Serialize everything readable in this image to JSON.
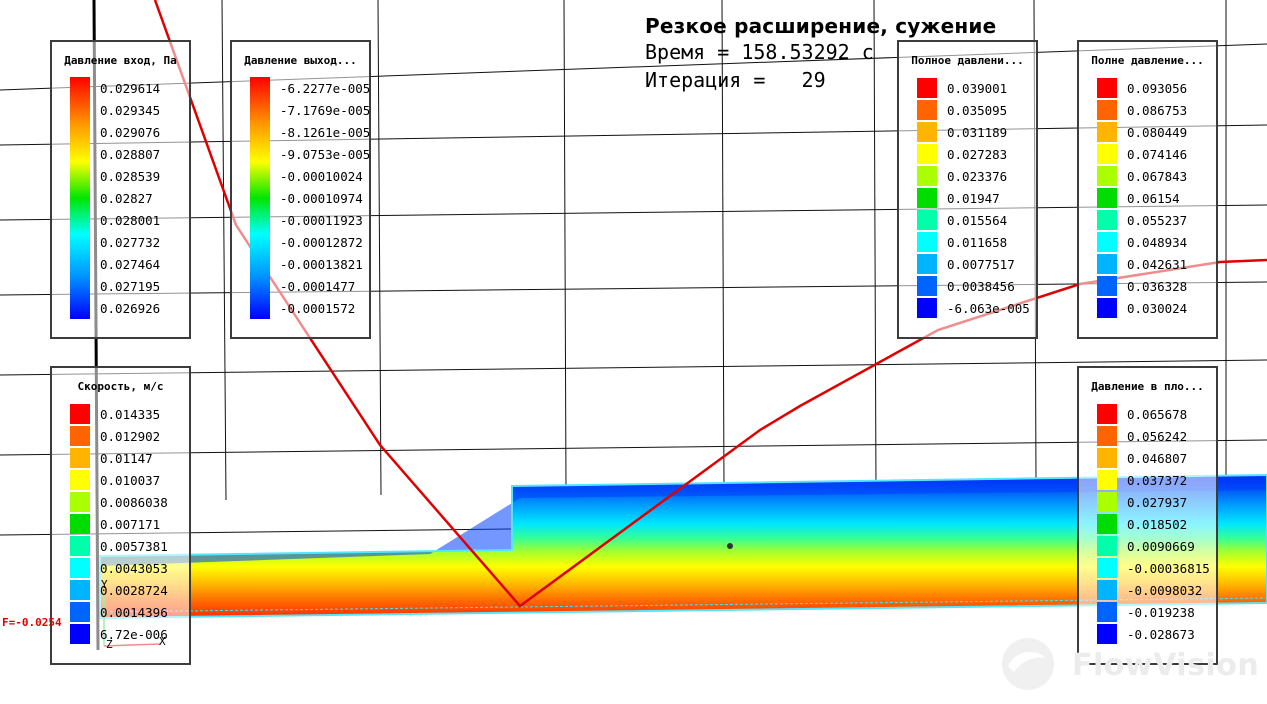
{
  "header": {
    "title": "Резкое расширение, сужение",
    "time_line": "Время = 158.53292 с",
    "iter_line": "Итерация =   29"
  },
  "force_label": "F=-0.0254",
  "axes_labels": {
    "y": "Y",
    "z": "Z",
    "x": "X"
  },
  "watermark": "FlowVision",
  "legends": {
    "inlet_pressure": {
      "title": "Давление вход, Па",
      "values": [
        "0.029614",
        "0.029345",
        "0.029076",
        "0.028807",
        "0.028539",
        "0.02827",
        "0.028001",
        "0.027732",
        "0.027464",
        "0.027195",
        "0.026926"
      ]
    },
    "outlet_pressure": {
      "title": "Давление выход...",
      "values": [
        "-6.2277e-005",
        "-7.1769e-005",
        "-8.1261e-005",
        "-9.0753e-005",
        "-0.00010024",
        "-0.00010974",
        "-0.00011923",
        "-0.00012872",
        "-0.00013821",
        "-0.0001477",
        "-0.0001572"
      ]
    },
    "total_pressure_1": {
      "title": "Полное давлени...",
      "values": [
        "0.039001",
        "0.035095",
        "0.031189",
        "0.027283",
        "0.023376",
        "0.01947",
        "0.015564",
        "0.011658",
        "0.0077517",
        "0.0038456",
        "-6.063e-005"
      ],
      "colors": [
        "#ff0000",
        "#ff6400",
        "#ffb400",
        "#ffff00",
        "#aaff00",
        "#00dc00",
        "#00ffaa",
        "#00ffff",
        "#00b4ff",
        "#0064ff",
        "#0000ff"
      ]
    },
    "total_pressure_2": {
      "title": "Полне давление...",
      "values": [
        "0.093056",
        "0.086753",
        "0.080449",
        "0.074146",
        "0.067843",
        "0.06154",
        "0.055237",
        "0.048934",
        "0.042631",
        "0.036328",
        "0.030024"
      ],
      "colors": [
        "#ff0000",
        "#ff6400",
        "#ffb400",
        "#ffff00",
        "#aaff00",
        "#00dc00",
        "#00ffaa",
        "#00ffff",
        "#00b4ff",
        "#0064ff",
        "#0000ff"
      ]
    },
    "velocity": {
      "title": "Скорость, м/с",
      "values": [
        "0.014335",
        "0.012902",
        "0.01147",
        "0.010037",
        "0.0086038",
        "0.007171",
        "0.0057381",
        "0.0043053",
        "0.0028724",
        "0.0014396",
        "6.72e-006"
      ],
      "colors": [
        "#ff0000",
        "#ff6400",
        "#ffb400",
        "#ffff00",
        "#aaff00",
        "#00dc00",
        "#00ffaa",
        "#00ffff",
        "#00b4ff",
        "#0064ff",
        "#0000ff"
      ]
    },
    "plane_pressure": {
      "title": "Давление в пло...",
      "values": [
        "0.065678",
        "0.056242",
        "0.046807",
        "0.037372",
        "0.027937",
        "0.018502",
        "0.0090669",
        "-0.00036815",
        "-0.0098032",
        "-0.019238",
        "-0.028673"
      ],
      "colors": [
        "#ff0000",
        "#ff6400",
        "#ffb400",
        "#ffff00",
        "#aaff00",
        "#00dc00",
        "#00ffaa",
        "#00ffff",
        "#00b4ff",
        "#0064ff",
        "#0000ff"
      ]
    }
  }
}
